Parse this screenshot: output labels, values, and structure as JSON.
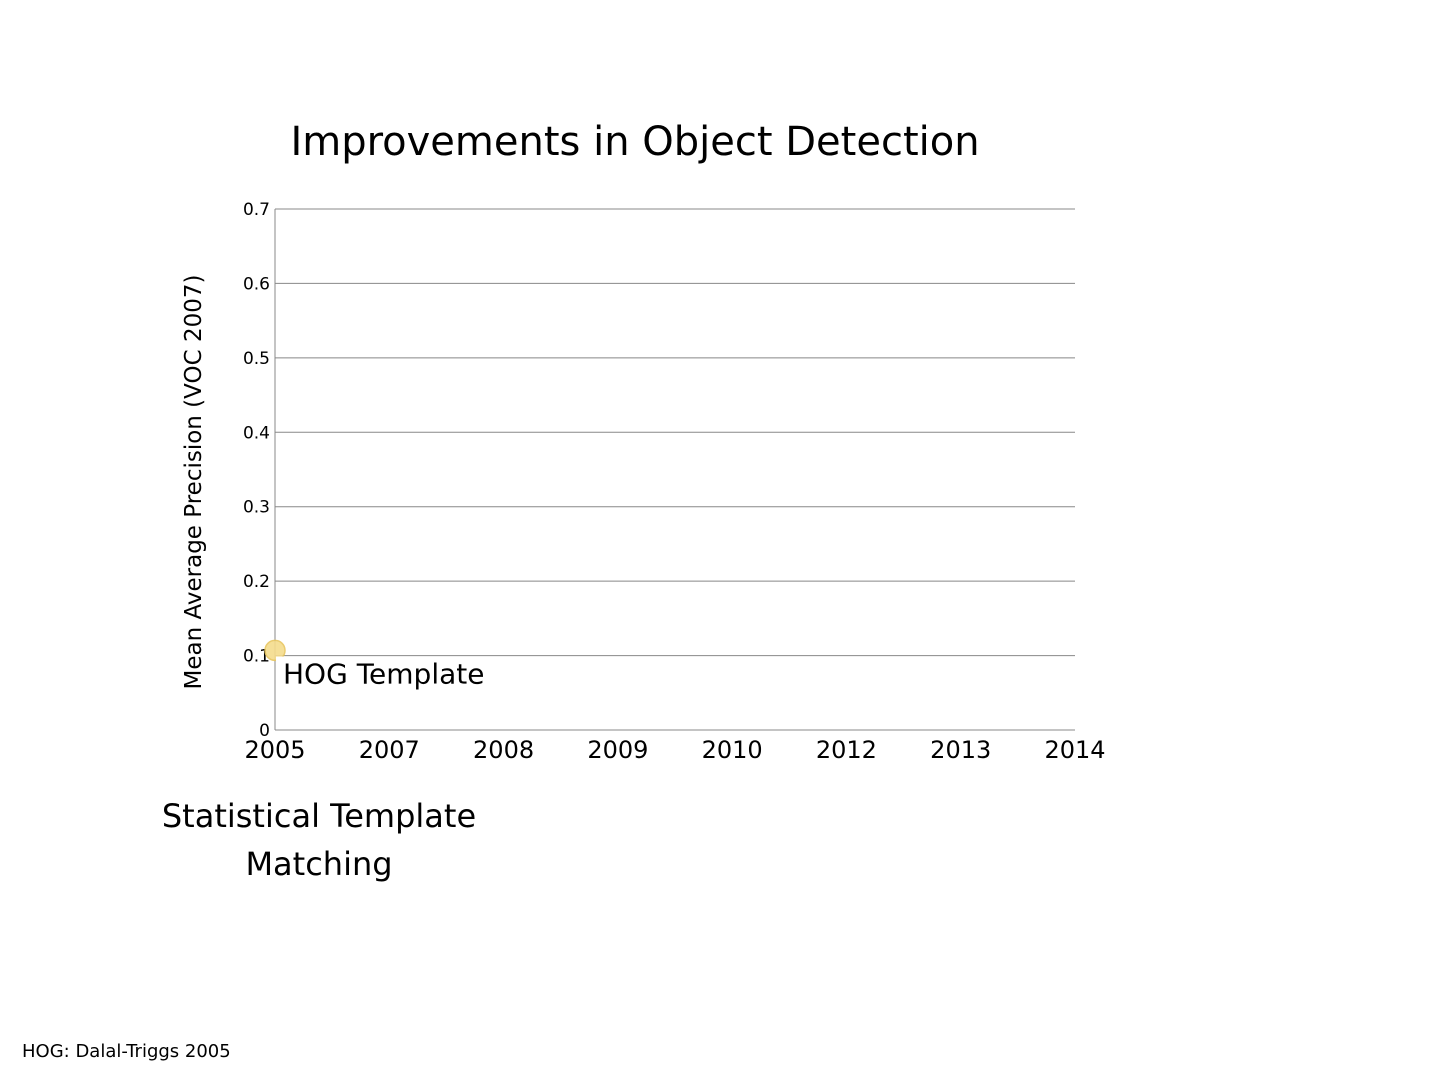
{
  "chart_data": {
    "type": "scatter",
    "title": "Improvements in Object Detection",
    "xlabel": "",
    "ylabel": "Mean Average Precision (VOC 2007)",
    "categories": [
      "2005",
      "2007",
      "2008",
      "2009",
      "2010",
      "2012",
      "2013",
      "2014"
    ],
    "yticks": [
      "0",
      "0.1",
      "0.2",
      "0.3",
      "0.4",
      "0.5",
      "0.6",
      "0.7"
    ],
    "ylim": [
      0,
      0.7
    ],
    "grid": true,
    "series": [
      {
        "x": [
          "2005"
        ],
        "values": [
          0.107
        ],
        "color": "#F5DC8C"
      }
    ],
    "annotations": [
      {
        "text": "HOG Template",
        "x": "2005",
        "y": 0.1
      }
    ]
  },
  "caption": {
    "line1": "Statistical Template",
    "line2": "Matching"
  },
  "footnote": "HOG: Dalal-Triggs 2005",
  "colors": {
    "grid": "#888888",
    "marker": "#F5DC8C",
    "marker_outline": "#E8C660"
  }
}
